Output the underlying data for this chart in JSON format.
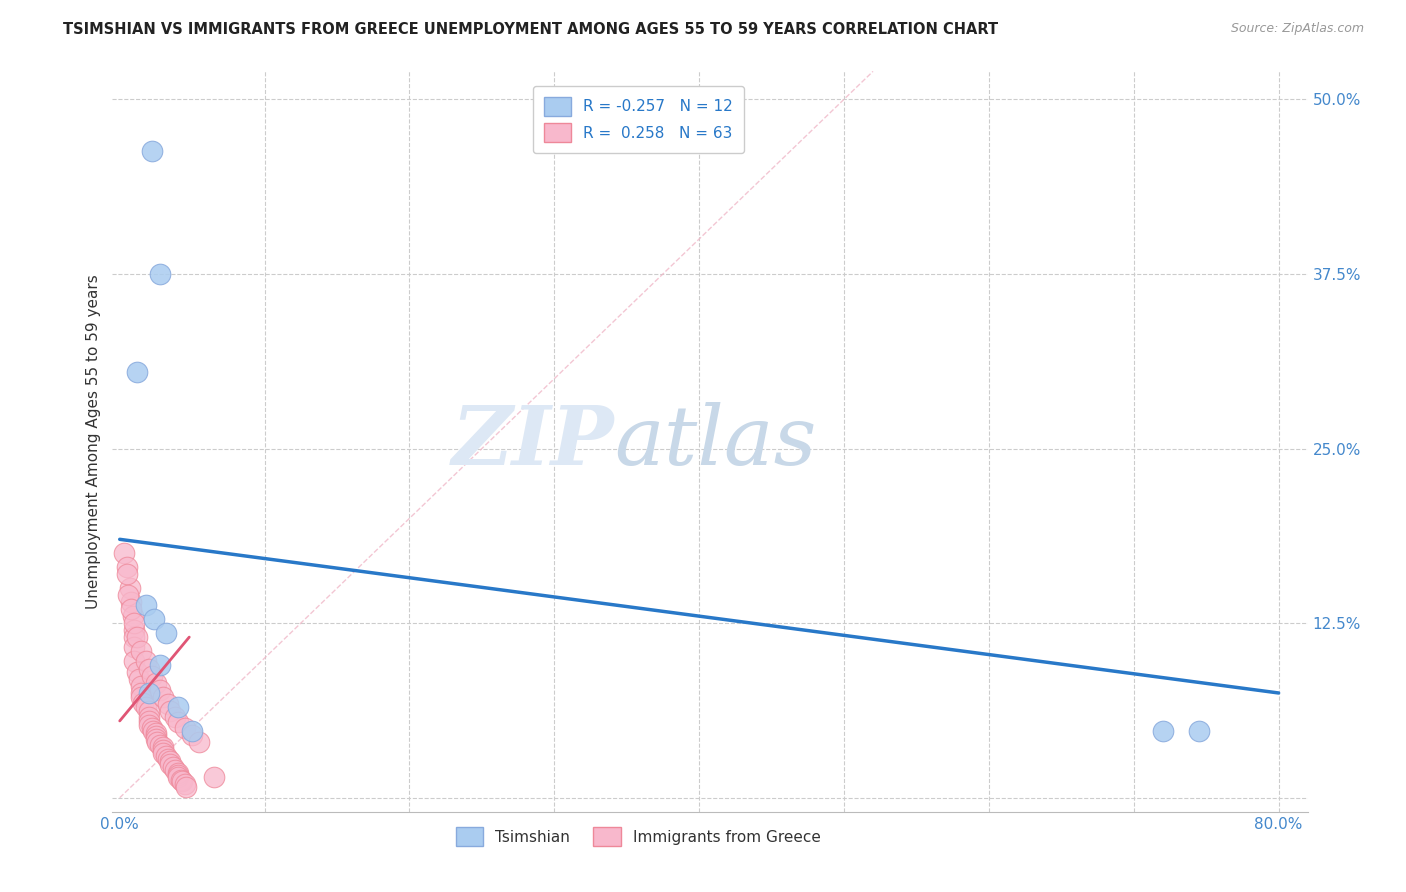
{
  "title": "TSIMSHIAN VS IMMIGRANTS FROM GREECE UNEMPLOYMENT AMONG AGES 55 TO 59 YEARS CORRELATION CHART",
  "source": "Source: ZipAtlas.com",
  "ylabel": "Unemployment Among Ages 55 to 59 years",
  "xlim": [
    -0.005,
    0.82
  ],
  "ylim": [
    -0.01,
    0.52
  ],
  "xticks": [
    0.0,
    0.1,
    0.2,
    0.3,
    0.4,
    0.5,
    0.6,
    0.7,
    0.8
  ],
  "xticklabels": [
    "0.0%",
    "",
    "",
    "",
    "",
    "",
    "",
    "",
    "80.0%"
  ],
  "yticks_right": [
    0.125,
    0.25,
    0.375,
    0.5
  ],
  "yticklabels_right": [
    "12.5%",
    "25.0%",
    "37.5%",
    "50.0%"
  ],
  "grid_yticks": [
    0.0,
    0.125,
    0.25,
    0.375,
    0.5
  ],
  "grid_color": "#cccccc",
  "background_color": "#ffffff",
  "tsimshian_color": "#aaccf0",
  "tsimshian_edge_color": "#88aadd",
  "greece_color": "#f8b8cc",
  "greece_edge_color": "#ee8899",
  "tsimshian_R": -0.257,
  "tsimshian_N": 12,
  "greece_R": 0.258,
  "greece_N": 63,
  "tsimshian_line_color": "#2878c8",
  "greece_line_color": "#e05575",
  "watermark_zip": "ZIP",
  "watermark_atlas": "atlas",
  "tsimshian_line_x": [
    0.0,
    0.8
  ],
  "tsimshian_line_y": [
    0.185,
    0.075
  ],
  "greece_line_x": [
    0.0,
    0.048
  ],
  "greece_line_y": [
    0.055,
    0.115
  ],
  "diag_line_x": [
    0.0,
    0.52
  ],
  "diag_line_y": [
    0.0,
    0.52
  ],
  "tsimshian_points_x": [
    0.022,
    0.028,
    0.012,
    0.018,
    0.024,
    0.032,
    0.04,
    0.05,
    0.72,
    0.745,
    0.02,
    0.028
  ],
  "tsimshian_points_y": [
    0.463,
    0.375,
    0.305,
    0.138,
    0.128,
    0.118,
    0.065,
    0.048,
    0.048,
    0.048,
    0.075,
    0.095
  ],
  "greece_points_x": [
    0.003,
    0.005,
    0.007,
    0.008,
    0.009,
    0.01,
    0.01,
    0.01,
    0.01,
    0.012,
    0.013,
    0.015,
    0.015,
    0.015,
    0.016,
    0.018,
    0.02,
    0.02,
    0.02,
    0.02,
    0.022,
    0.023,
    0.025,
    0.025,
    0.025,
    0.026,
    0.028,
    0.03,
    0.03,
    0.03,
    0.032,
    0.033,
    0.035,
    0.035,
    0.037,
    0.038,
    0.04,
    0.04,
    0.04,
    0.042,
    0.043,
    0.045,
    0.046,
    0.005,
    0.006,
    0.008,
    0.01,
    0.012,
    0.015,
    0.018,
    0.02,
    0.022,
    0.025,
    0.028,
    0.03,
    0.033,
    0.035,
    0.038,
    0.04,
    0.045,
    0.05,
    0.055,
    0.065
  ],
  "greece_points_y": [
    0.175,
    0.165,
    0.15,
    0.14,
    0.13,
    0.12,
    0.115,
    0.108,
    0.098,
    0.09,
    0.085,
    0.08,
    0.075,
    0.072,
    0.068,
    0.065,
    0.062,
    0.058,
    0.055,
    0.052,
    0.05,
    0.048,
    0.046,
    0.044,
    0.042,
    0.04,
    0.038,
    0.036,
    0.034,
    0.032,
    0.03,
    0.028,
    0.026,
    0.024,
    0.022,
    0.02,
    0.018,
    0.016,
    0.015,
    0.013,
    0.012,
    0.01,
    0.008,
    0.16,
    0.145,
    0.135,
    0.125,
    0.115,
    0.105,
    0.098,
    0.092,
    0.087,
    0.082,
    0.077,
    0.072,
    0.067,
    0.062,
    0.058,
    0.054,
    0.05,
    0.045,
    0.04,
    0.015
  ]
}
